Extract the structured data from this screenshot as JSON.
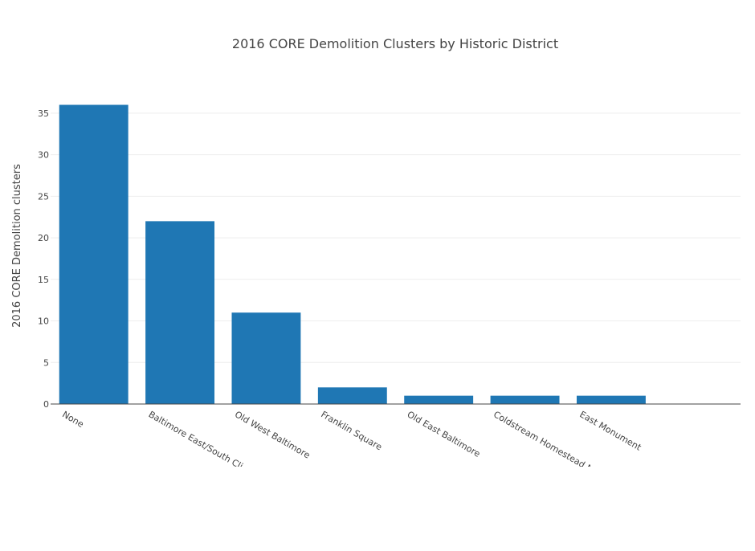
{
  "chart_data": {
    "type": "bar",
    "title": "2016 CORE Demolition Clusters by Historic District",
    "xlabel": "",
    "ylabel": "2016 CORE Demolition clusters",
    "categories": [
      "None",
      "Baltimore East/South Cli",
      "Old West Baltimore",
      "Franklin Square",
      "Old East Baltimore",
      "Coldstream Homestead M",
      "East Monument",
      ""
    ],
    "values": [
      36,
      22,
      11,
      2,
      1,
      1,
      1,
      0
    ],
    "ylim": [
      0,
      37.5
    ],
    "yticks": [
      0,
      5,
      10,
      15,
      20,
      25,
      30,
      35
    ],
    "grid": true,
    "legend": "none",
    "bar_color": "#1f77b4"
  }
}
